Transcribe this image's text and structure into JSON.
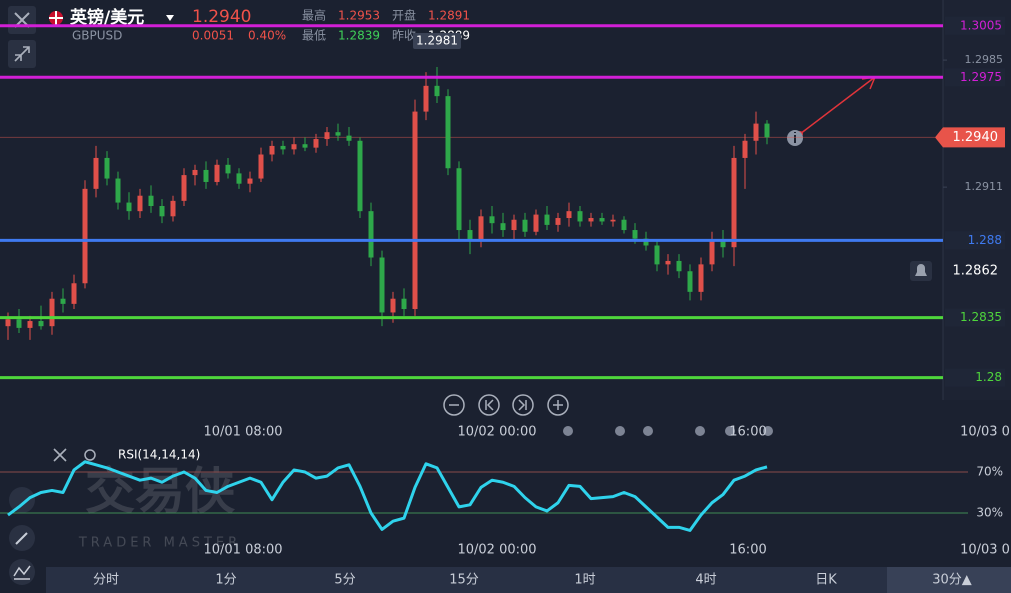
{
  "header": {
    "symbol": "英镑/美元",
    "code": "GBPUSD",
    "price": "1.2940",
    "change": "0.0051",
    "change_pct": "0.40%",
    "high_label": "最高",
    "high": "1.2953",
    "open_label": "开盘",
    "open": "1.2891",
    "low_label": "最低",
    "low": "1.2839",
    "prev_label": "昨收",
    "prev": "1.2889"
  },
  "chart_data": [
    {
      "type": "candlestick",
      "ylim": [
        1.2787,
        1.302
      ],
      "yticks": [
        1.2985,
        1.2911
      ],
      "up_color": "#e0504a",
      "down_color": "#2ea84a",
      "candles": {
        "open": [
          1.283,
          1.2834,
          1.2829,
          1.2833,
          1.283,
          1.2846,
          1.2843,
          1.2855,
          1.291,
          1.2928,
          1.2916,
          1.2902,
          1.2897,
          1.2906,
          1.29,
          1.2894,
          1.2903,
          1.2918,
          1.2921,
          1.2914,
          1.2924,
          1.2919,
          1.2913,
          1.2916,
          1.293,
          1.2935,
          1.2933,
          1.2936,
          1.2934,
          1.2939,
          1.2943,
          1.2941,
          1.2938,
          1.2897,
          1.287,
          1.2838,
          1.2846,
          1.284,
          1.2955,
          1.297,
          1.2964,
          1.2922,
          1.2886,
          1.288,
          1.2894,
          1.289,
          1.2886,
          1.2892,
          1.2885,
          1.2895,
          1.2889,
          1.2893,
          1.2897,
          1.2891,
          1.2893,
          1.2891,
          1.2892,
          1.2886,
          1.2881,
          1.2877,
          1.2866,
          1.2868,
          1.2862,
          1.285,
          1.2866,
          1.288,
          1.2876,
          1.2928,
          1.2938,
          1.2948
        ],
        "high": [
          1.2838,
          1.284,
          1.2836,
          1.2842,
          1.285,
          1.2852,
          1.286,
          1.2915,
          1.2935,
          1.2932,
          1.292,
          1.2908,
          1.291,
          1.2912,
          1.2904,
          1.2906,
          1.2922,
          1.2924,
          1.2926,
          1.2927,
          1.2928,
          1.2922,
          1.292,
          1.2934,
          1.2938,
          1.2938,
          1.294,
          1.294,
          1.2942,
          1.2946,
          1.2948,
          1.2946,
          1.294,
          1.2902,
          1.2874,
          1.285,
          1.2852,
          1.2962,
          1.2978,
          1.2981,
          1.2968,
          1.2926,
          1.2892,
          1.2898,
          1.29,
          1.2896,
          1.2895,
          1.2896,
          1.2898,
          1.29,
          1.2896,
          1.2902,
          1.29,
          1.2896,
          1.2896,
          1.2895,
          1.2894,
          1.289,
          1.2885,
          1.288,
          1.2872,
          1.2872,
          1.2866,
          1.287,
          1.2885,
          1.2886,
          1.2935,
          1.2942,
          1.2955,
          1.295
        ],
        "low": [
          1.2822,
          1.2826,
          1.2822,
          1.2828,
          1.2825,
          1.2838,
          1.284,
          1.2852,
          1.2905,
          1.2912,
          1.2898,
          1.2892,
          1.2893,
          1.2896,
          1.289,
          1.2891,
          1.29,
          1.2912,
          1.291,
          1.2912,
          1.2916,
          1.291,
          1.2908,
          1.2914,
          1.2926,
          1.293,
          1.293,
          1.2932,
          1.2931,
          1.2935,
          1.2938,
          1.2935,
          1.2893,
          1.2865,
          1.283,
          1.2832,
          1.2836,
          1.2836,
          1.295,
          1.296,
          1.2918,
          1.288,
          1.2872,
          1.2876,
          1.2884,
          1.2882,
          1.288,
          1.2882,
          1.2883,
          1.2886,
          1.2885,
          1.2888,
          1.2888,
          1.2888,
          1.2889,
          1.2888,
          1.2884,
          1.2878,
          1.2874,
          1.2862,
          1.286,
          1.2858,
          1.2845,
          1.2845,
          1.2862,
          1.287,
          1.2865,
          1.291,
          1.293,
          1.2936
        ],
        "close": [
          1.2834,
          1.2829,
          1.2833,
          1.283,
          1.2846,
          1.2843,
          1.2855,
          1.291,
          1.2928,
          1.2916,
          1.2902,
          1.2897,
          1.2906,
          1.29,
          1.2894,
          1.2903,
          1.2918,
          1.2921,
          1.2914,
          1.2924,
          1.2919,
          1.2913,
          1.2916,
          1.293,
          1.2935,
          1.2933,
          1.2936,
          1.2934,
          1.2939,
          1.2943,
          1.2941,
          1.2938,
          1.2897,
          1.287,
          1.2838,
          1.2846,
          1.284,
          1.2955,
          1.297,
          1.2964,
          1.2922,
          1.2886,
          1.288,
          1.2894,
          1.289,
          1.2886,
          1.2892,
          1.2885,
          1.2895,
          1.2889,
          1.2893,
          1.2897,
          1.2891,
          1.2893,
          1.2891,
          1.2892,
          1.2886,
          1.2881,
          1.2877,
          1.2866,
          1.2868,
          1.2862,
          1.285,
          1.2866,
          1.288,
          1.2876,
          1.2928,
          1.2938,
          1.2948,
          1.294
        ]
      },
      "levels": [
        {
          "value": 1.3005,
          "color": "#d21fd6"
        },
        {
          "value": 1.2975,
          "color": "#d21fd6"
        },
        {
          "value": 1.288,
          "color": "#3f7af0"
        },
        {
          "value": 1.2835,
          "color": "#4fd63c"
        },
        {
          "value": 1.28,
          "color": "#4fd63c"
        }
      ],
      "current_price": {
        "value": 1.294,
        "label": "1.2940"
      },
      "alert_price": 1.2862,
      "high_marker": 1.2981,
      "time_labels": [
        "10/01 08:00",
        "10/02 00:00",
        "16:00",
        "10/03 0"
      ]
    },
    {
      "type": "line",
      "name": "RSI(14,14,14)",
      "color": "#2fd3ec",
      "ylim": [
        0,
        100
      ],
      "yticks": [
        {
          "value": 70,
          "label": "70%"
        },
        {
          "value": 30,
          "label": "30%"
        }
      ],
      "values": [
        28,
        36,
        45,
        50,
        52,
        50,
        72,
        80,
        77,
        74,
        70,
        66,
        62,
        64,
        60,
        66,
        70,
        64,
        52,
        50,
        56,
        60,
        64,
        60,
        43,
        60,
        72,
        70,
        64,
        66,
        74,
        77,
        56,
        30,
        14,
        22,
        25,
        55,
        78,
        74,
        55,
        36,
        38,
        55,
        62,
        60,
        56,
        45,
        36,
        32,
        40,
        57,
        56,
        44,
        45,
        46,
        50,
        46,
        36,
        26,
        16,
        16,
        13,
        28,
        40,
        48,
        62,
        66,
        72,
        75
      ],
      "time_labels": [
        "10/01 08:00",
        "10/02 00:00",
        "16:00",
        "10/03 0"
      ]
    }
  ],
  "watermark": {
    "title": "交易侠",
    "subtitle": "TRADER MASTER"
  },
  "tabs": [
    "分时",
    "1分",
    "5分",
    "15分",
    "1时",
    "4时",
    "日K",
    "30分▲"
  ]
}
